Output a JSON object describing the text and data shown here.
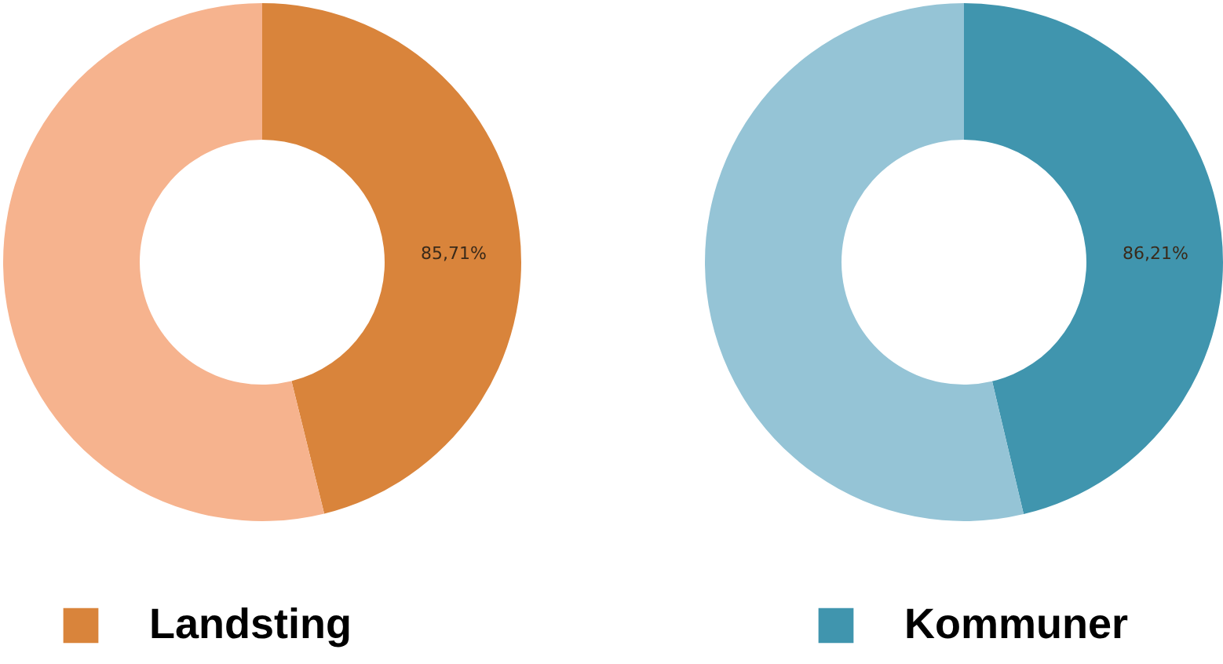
{
  "chart_data": [
    {
      "type": "donut",
      "categories": [
        "Landsting",
        null
      ],
      "values": [
        46.15,
        53.85
      ],
      "colors": [
        "#d9843b",
        "#f6b38e"
      ],
      "annotations": [
        "85,71%"
      ],
      "legend": "bottom"
    },
    {
      "type": "donut",
      "categories": [
        "Kommuner",
        null
      ],
      "values": [
        46.3,
        53.7
      ],
      "colors": [
        "#4095ae",
        "#95c4d6"
      ],
      "annotations": [
        "86,21%"
      ],
      "legend": "bottom"
    }
  ]
}
